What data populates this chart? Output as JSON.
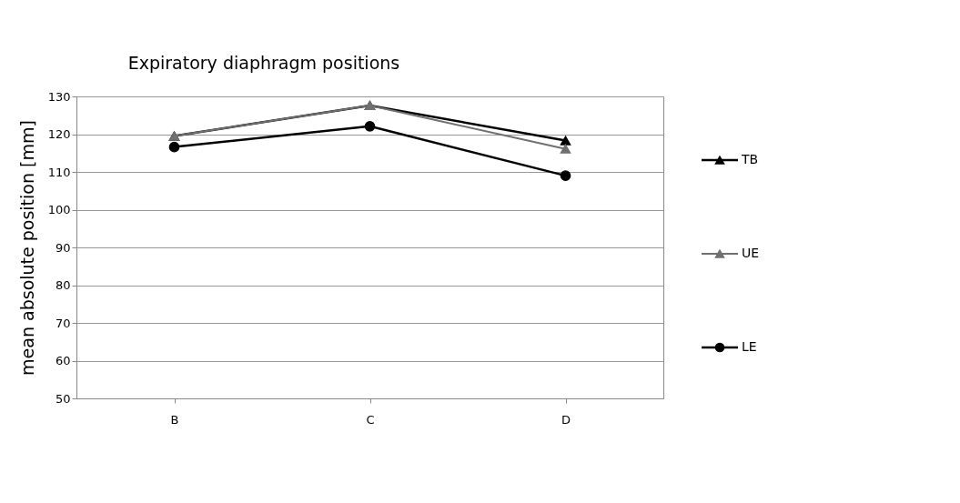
{
  "chart_data": {
    "type": "line",
    "title": "Expiratory diaphragm positions",
    "ylabel": "mean absolute position    [mm]",
    "categories": [
      "B",
      "C",
      "D"
    ],
    "series": [
      {
        "name": "TB",
        "color": "#000000",
        "marker": "triangle",
        "values": [
          119.5,
          127.6,
          118.3
        ]
      },
      {
        "name": "UE",
        "color": "#707070",
        "marker": "triangle",
        "values": [
          119.5,
          127.6,
          116.1
        ]
      },
      {
        "name": "LE",
        "color": "#000000",
        "marker": "circle",
        "values": [
          116.6,
          122.1,
          109.0
        ]
      }
    ],
    "ylim": [
      50,
      130
    ],
    "yticks": [
      50,
      60,
      70,
      80,
      90,
      100,
      110,
      120,
      130
    ],
    "grid": "y",
    "legend": "right",
    "line_style": "solid"
  }
}
